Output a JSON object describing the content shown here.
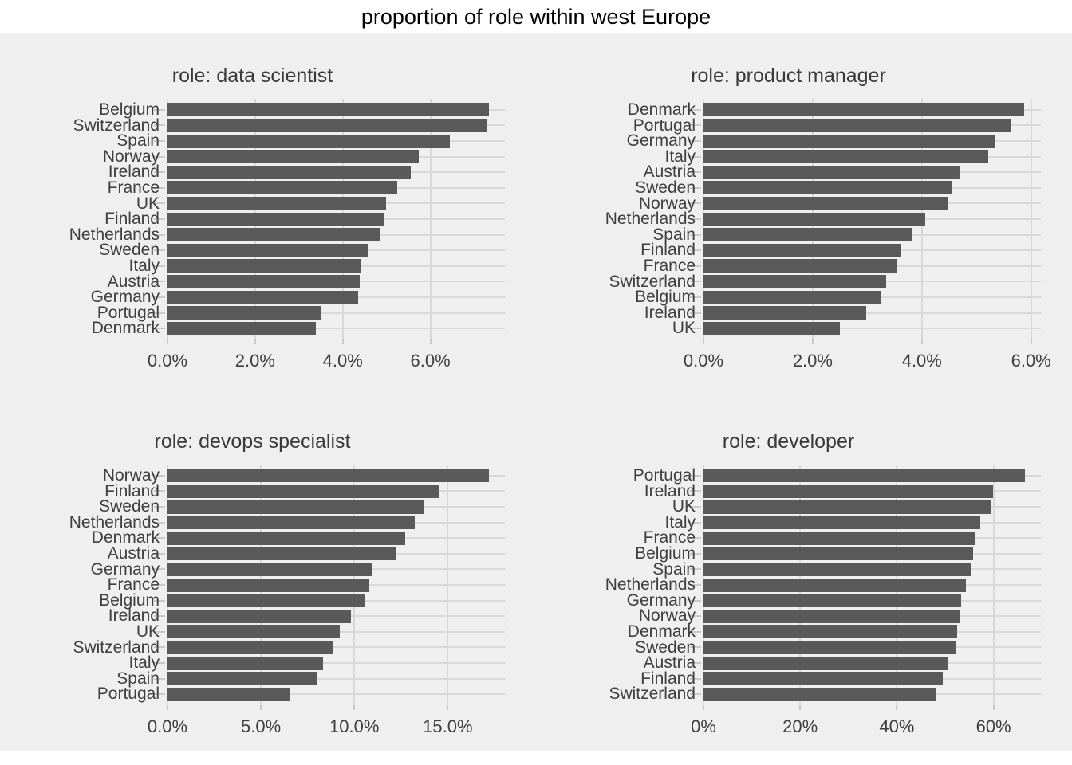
{
  "title": "proportion of role within west Europe",
  "colors": {
    "background": "#efefef",
    "bar": "#595959",
    "gridline": "#d9d9d9",
    "tick_mark": "#c9c9c9",
    "main_title_text": "#000000",
    "facet_title_text": "#3a3a3a",
    "axis_text": "#3f3f3f"
  },
  "chart_data": [
    {
      "type": "bar",
      "orientation": "horizontal",
      "title": "role: data scientist",
      "categories": [
        "Belgium",
        "Switzerland",
        "Spain",
        "Norway",
        "Ireland",
        "France",
        "UK",
        "Finland",
        "Netherlands",
        "Sweden",
        "Italy",
        "Austria",
        "Germany",
        "Portugal",
        "Denmark"
      ],
      "values": [
        7.33,
        7.3,
        6.44,
        5.73,
        5.55,
        5.25,
        4.99,
        4.96,
        4.85,
        4.58,
        4.41,
        4.39,
        4.35,
        3.49,
        3.39
      ],
      "value_unit": "%",
      "xlabel": "",
      "ylabel": "",
      "xlim": [
        0,
        7.7
      ],
      "grid": true,
      "x_ticks": [
        {
          "value": 0,
          "label": "0.0%"
        },
        {
          "value": 2,
          "label": "2.0%"
        },
        {
          "value": 4,
          "label": "4.0%"
        },
        {
          "value": 6,
          "label": "6.0%"
        }
      ]
    },
    {
      "type": "bar",
      "orientation": "horizontal",
      "title": "role: product manager",
      "categories": [
        "Denmark",
        "Portugal",
        "Germany",
        "Italy",
        "Austria",
        "Sweden",
        "Norway",
        "Netherlands",
        "Spain",
        "Finland",
        "France",
        "Switzerland",
        "Belgium",
        "Ireland",
        "UK"
      ],
      "values": [
        5.87,
        5.64,
        5.33,
        5.22,
        4.7,
        4.56,
        4.49,
        4.06,
        3.83,
        3.61,
        3.55,
        3.34,
        3.26,
        2.98,
        2.5
      ],
      "value_unit": "%",
      "xlabel": "",
      "ylabel": "",
      "xlim": [
        0,
        6.18
      ],
      "grid": true,
      "x_ticks": [
        {
          "value": 0,
          "label": "0.0%"
        },
        {
          "value": 2,
          "label": "2.0%"
        },
        {
          "value": 4,
          "label": "4.0%"
        },
        {
          "value": 6,
          "label": "6.0%"
        }
      ]
    },
    {
      "type": "bar",
      "orientation": "horizontal",
      "title": "role: devops specialist",
      "categories": [
        "Norway",
        "Finland",
        "Sweden",
        "Netherlands",
        "Denmark",
        "Austria",
        "Germany",
        "France",
        "Belgium",
        "Ireland",
        "UK",
        "Switzerland",
        "Italy",
        "Spain",
        "Portugal"
      ],
      "values": [
        17.2,
        14.5,
        13.74,
        13.25,
        12.72,
        12.19,
        10.95,
        10.82,
        10.6,
        9.84,
        9.21,
        8.85,
        8.33,
        8.0,
        6.52
      ],
      "value_unit": "%",
      "xlabel": "",
      "ylabel": "",
      "xlim": [
        0,
        18.06
      ],
      "grid": true,
      "x_ticks": [
        {
          "value": 0,
          "label": "0.0%"
        },
        {
          "value": 5,
          "label": "5.0%"
        },
        {
          "value": 10,
          "label": "10.0%"
        },
        {
          "value": 15,
          "label": "15.0%"
        }
      ]
    },
    {
      "type": "bar",
      "orientation": "horizontal",
      "title": "role: developer",
      "categories": [
        "Portugal",
        "Ireland",
        "UK",
        "Italy",
        "France",
        "Belgium",
        "Spain",
        "Netherlands",
        "Germany",
        "Norway",
        "Denmark",
        "Sweden",
        "Austria",
        "Finland",
        "Switzerland"
      ],
      "values": [
        66.5,
        59.9,
        59.5,
        57.2,
        56.2,
        55.8,
        55.5,
        54.3,
        53.3,
        52.9,
        52.4,
        52.1,
        50.6,
        49.5,
        48.2
      ],
      "value_unit": "%",
      "xlabel": "",
      "ylabel": "",
      "xlim": [
        0,
        69.8
      ],
      "grid": true,
      "x_ticks": [
        {
          "value": 0,
          "label": "0%"
        },
        {
          "value": 20,
          "label": "20%"
        },
        {
          "value": 40,
          "label": "40%"
        },
        {
          "value": 60,
          "label": "60%"
        }
      ]
    }
  ]
}
